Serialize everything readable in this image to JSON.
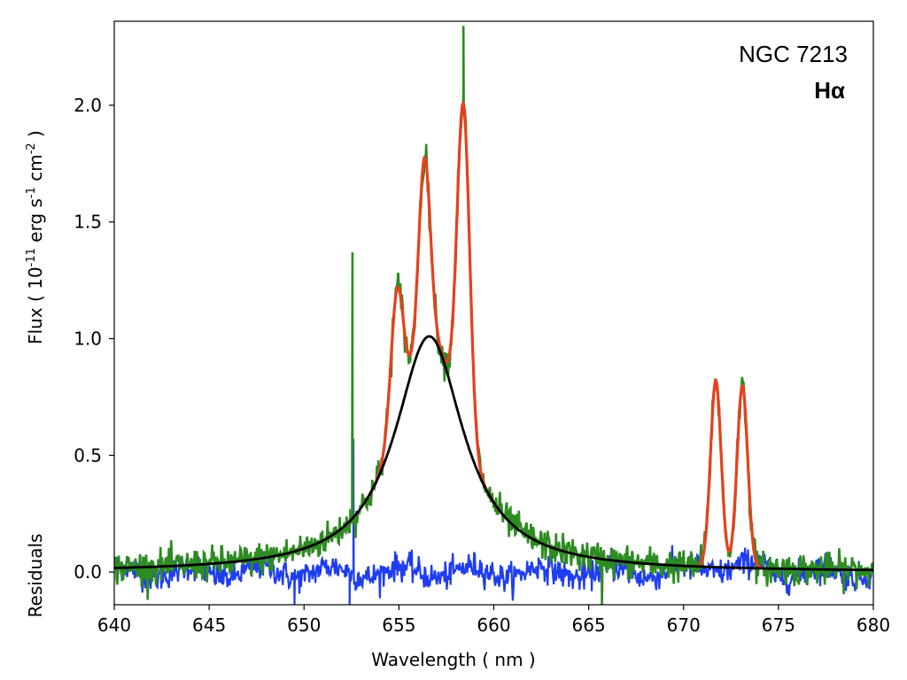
{
  "chart_data": {
    "type": "line",
    "annotation_object": "NGC 7213",
    "annotation_line": "Hα",
    "xlabel": "Wavelength ( nm )",
    "ylabel_main": "Flux ( 10",
    "ylabel_exp1": "-11",
    "ylabel_mid": " erg s",
    "ylabel_exp2": "-1",
    "ylabel_mid2": " cm",
    "ylabel_exp3": "-2",
    "ylabel_end": " )",
    "residuals_label": "Residuals",
    "xlim": [
      640,
      680
    ],
    "ylim": [
      -0.14,
      2.36
    ],
    "x_ticks": [
      640,
      645,
      650,
      655,
      660,
      665,
      670,
      675,
      680
    ],
    "y_ticks": [
      0.0,
      0.5,
      1.0,
      1.5,
      2.0
    ],
    "y_tick_labels": [
      "0.0",
      "0.5",
      "1.0",
      "1.5",
      "2.0"
    ],
    "grid": false,
    "colors": {
      "observed": "#2e8b22",
      "fit": "#e8401c",
      "broad": "#000000",
      "residuals": "#1f3df0"
    },
    "series": [
      {
        "key": "broad",
        "description": "broad Lorentzian component",
        "model": {
          "center": 656.6,
          "amplitude": 1.01,
          "hwhm": 2.2
        }
      },
      {
        "key": "fit",
        "description": "total model fit (broad + narrow lines)",
        "narrow_lines": [
          {
            "center": 654.9,
            "amplitude": 0.58,
            "sigma": 0.33
          },
          {
            "center": 656.35,
            "amplitude": 0.78,
            "sigma": 0.3
          },
          {
            "center": 658.4,
            "amplitude": 1.4,
            "sigma": 0.33
          },
          {
            "center": 671.7,
            "amplitude": 0.8,
            "sigma": 0.28
          },
          {
            "center": 673.1,
            "amplitude": 0.78,
            "sigma": 0.28
          }
        ],
        "x_range": [
          653.0,
          674.3
        ]
      },
      {
        "key": "observed",
        "description": "observed spectrum",
        "spikes": [
          {
            "x": 652.55,
            "y": 1.37
          },
          {
            "x": 658.4,
            "y": 2.34
          },
          {
            "x": 665.7,
            "y": -0.14
          }
        ]
      },
      {
        "key": "residuals",
        "description": "residuals (observed - fit)",
        "spikes": [
          {
            "x": 652.4,
            "y": -0.14
          },
          {
            "x": 652.6,
            "y": 0.57
          },
          {
            "x": 649.5,
            "y": -0.14
          }
        ]
      }
    ]
  }
}
